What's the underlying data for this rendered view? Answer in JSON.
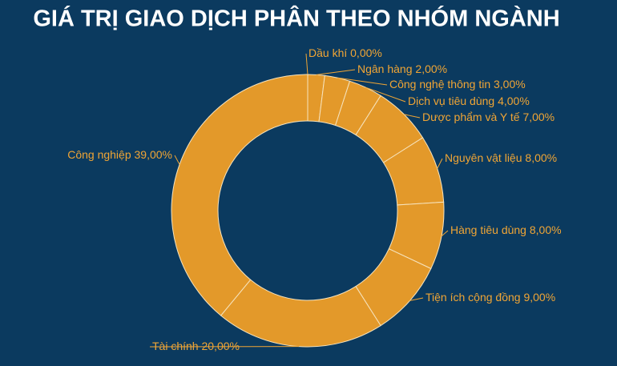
{
  "chart_data": {
    "type": "donut",
    "title": "GIÁ TRỊ GIAO DỊCH PHÂN THEO NHÓM NGÀNH",
    "categories": [
      "Dầu khí",
      "Ngân hàng",
      "Công nghệ thông tin",
      "Dịch vụ tiêu dùng",
      "Dược phẩm và Y tế",
      "Nguyên vật liệu",
      "Hàng tiêu dùng",
      "Tiện ích cộng đồng",
      "Tài chính",
      "Công nghiệp"
    ],
    "values": [
      0,
      2,
      3,
      4,
      7,
      8,
      8,
      9,
      20,
      39
    ],
    "value_labels": [
      "0,00%",
      "2,00%",
      "3,00%",
      "4,00%",
      "7,00%",
      "8,00%",
      "8,00%",
      "9,00%",
      "20,00%",
      "39,00%"
    ],
    "color": "#e3992a"
  }
}
